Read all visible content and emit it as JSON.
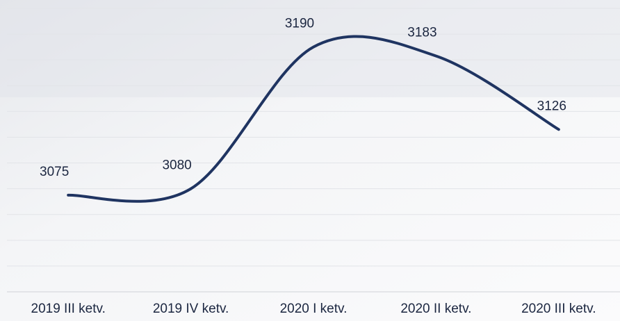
{
  "chart_data": {
    "type": "line",
    "categories": [
      "2019 III ketv.",
      "2019 IV ketv.",
      "2020 I ketv.",
      "2020 II ketv.",
      "2020 III ketv."
    ],
    "series": [
      {
        "color": "#1f3461",
        "values": [
          3075,
          3080,
          3190,
          3183,
          3126
        ]
      }
    ],
    "ylim": [
      3000,
      3220
    ],
    "yticks": [
      3000,
      3020,
      3040,
      3060,
      3080,
      3100,
      3120,
      3140,
      3160,
      3180,
      3200,
      3220
    ],
    "grid": true
  }
}
